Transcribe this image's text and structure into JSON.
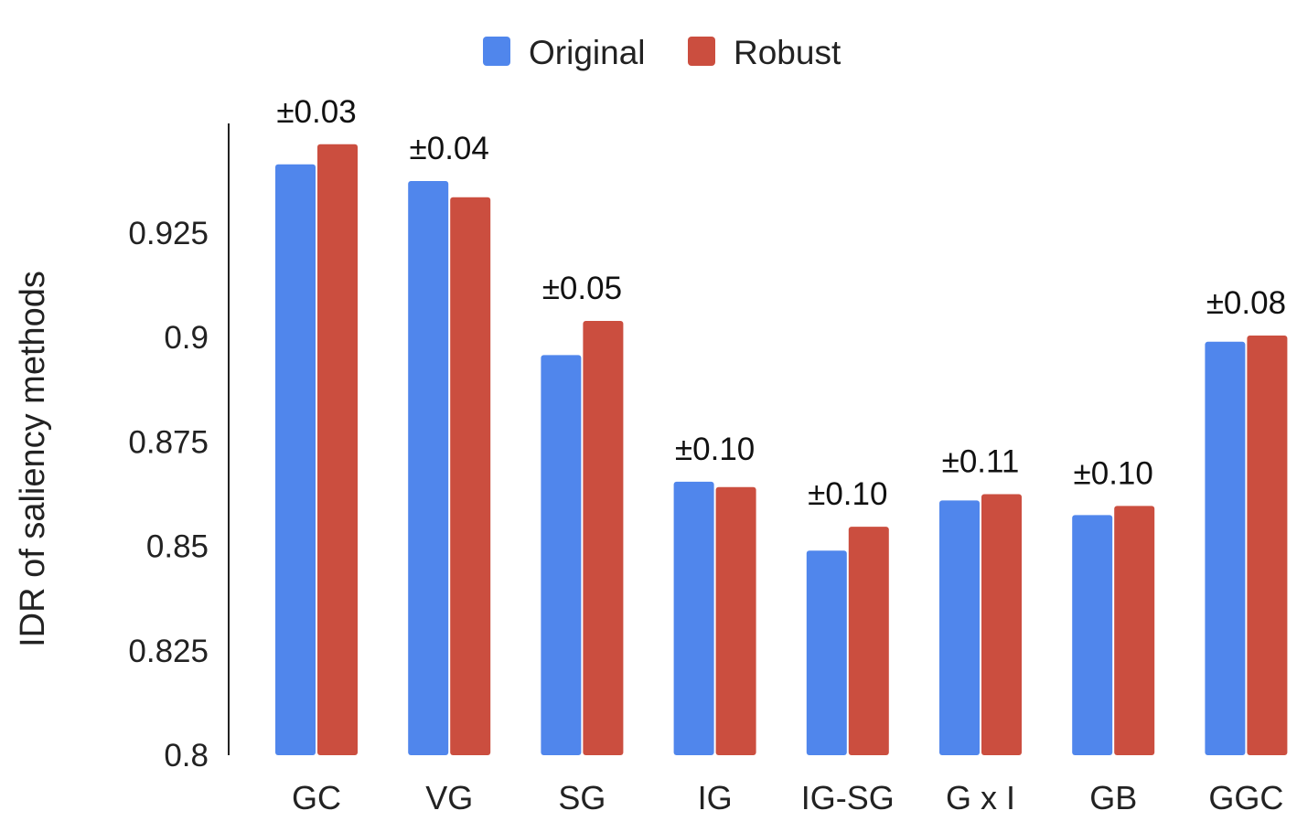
{
  "chart_data": {
    "type": "bar",
    "title": "",
    "xlabel": "",
    "ylabel": "IDR of saliency methods",
    "ylim": [
      0.8,
      0.948
    ],
    "yticks": [
      "0.8",
      "0.825",
      "0.85",
      "0.875",
      "0.9",
      "0.925"
    ],
    "ytick_values": [
      0.8,
      0.825,
      0.85,
      0.875,
      0.9,
      0.925
    ],
    "grid": false,
    "legend_position": "top-center",
    "categories": [
      "GC",
      "VG",
      "SG",
      "IG",
      "IG-SG",
      "G x I",
      "GB",
      "GGC"
    ],
    "series": [
      {
        "name": "Original",
        "color": "#5086EC",
        "values": [
          0.9415,
          0.9375,
          0.8958,
          0.8655,
          0.849,
          0.861,
          0.8575,
          0.899
        ]
      },
      {
        "name": "Robust",
        "color": "#CB4E3F",
        "values": [
          0.9463,
          0.9336,
          0.904,
          0.8642,
          0.8547,
          0.8625,
          0.8597,
          0.9005
        ]
      }
    ],
    "annotations": [
      "±0.03",
      "±0.04",
      "±0.05",
      "±0.10",
      "±0.10",
      "±0.11",
      "±0.10",
      "±0.08"
    ]
  }
}
